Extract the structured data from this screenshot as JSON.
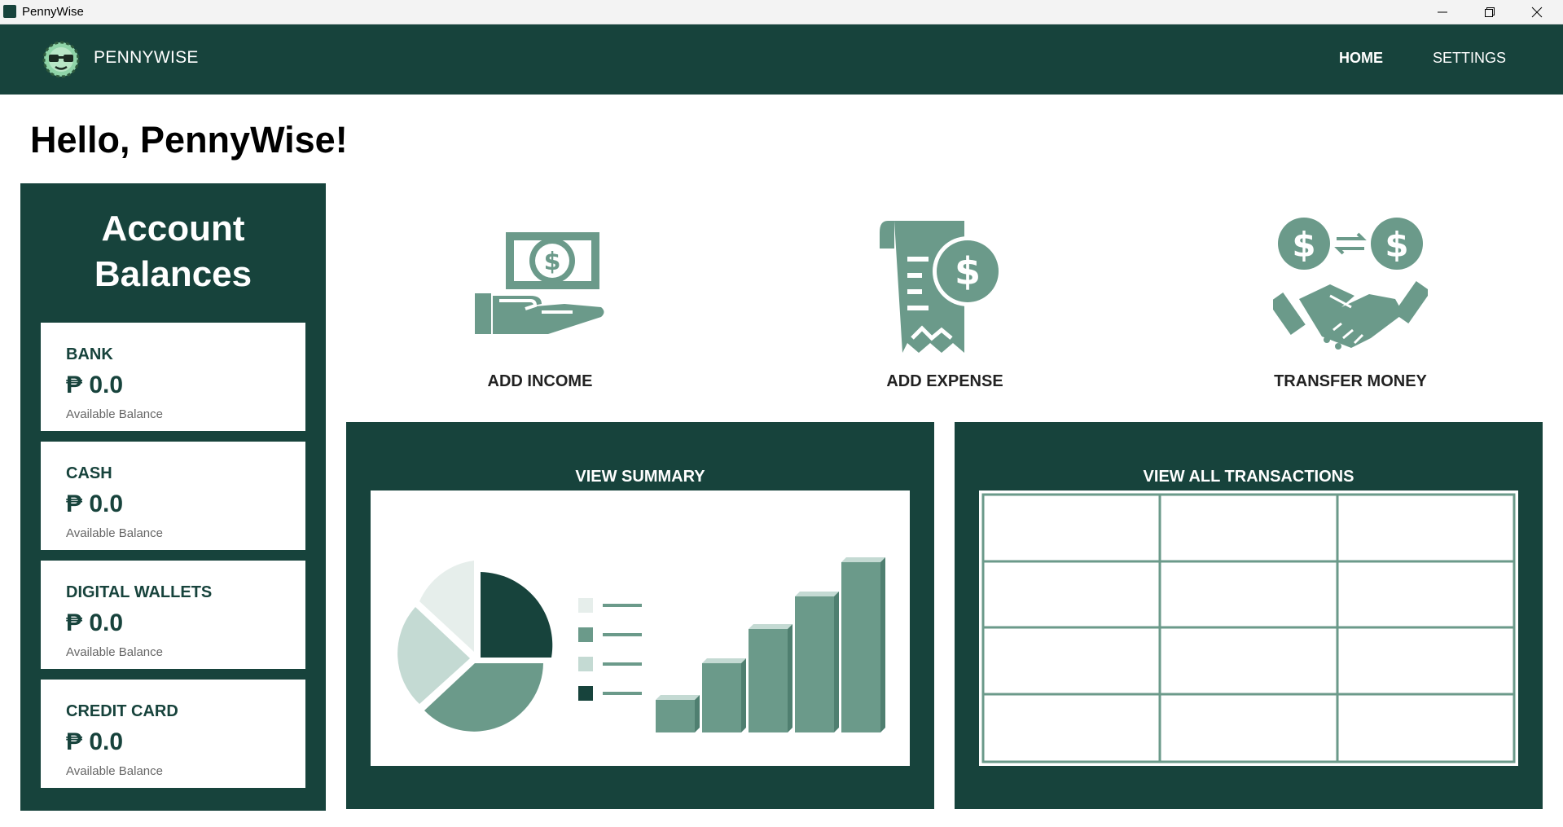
{
  "window": {
    "title": "PennyWise"
  },
  "header": {
    "brand": "PENNYWISE",
    "nav": {
      "home": "HOME",
      "settings": "SETTINGS"
    }
  },
  "greeting": "Hello, PennyWise!",
  "balances": {
    "title": "Account\nBalances",
    "accounts": [
      {
        "name": "BANK",
        "amount": "₱ 0.0",
        "caption": "Available Balance"
      },
      {
        "name": "CASH",
        "amount": "₱ 0.0",
        "caption": "Available Balance"
      },
      {
        "name": "DIGITAL WALLETS",
        "amount": "₱ 0.0",
        "caption": "Available Balance"
      },
      {
        "name": "CREDIT CARD",
        "amount": "₱ 0.0",
        "caption": "Available Balance"
      }
    ]
  },
  "actions": [
    {
      "label": "ADD INCOME",
      "icon": "cash-hand-icon"
    },
    {
      "label": "ADD EXPENSE",
      "icon": "receipt-icon"
    },
    {
      "label": "TRANSFER MONEY",
      "icon": "handshake-transfer-icon"
    }
  ],
  "panels": {
    "summary": {
      "title": "VIEW SUMMARY",
      "icon": "charts-illustration-icon"
    },
    "transactions": {
      "title": "VIEW ALL TRANSACTIONS",
      "icon": "table-grid-icon"
    }
  },
  "colors": {
    "primary": "#17433c",
    "accent": "#6b9a8a",
    "light": "#c4dad3",
    "lighter": "#e6eeeb"
  }
}
